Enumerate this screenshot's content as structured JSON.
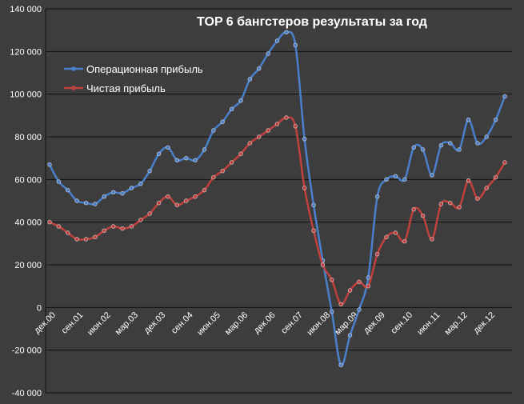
{
  "chart_data": {
    "type": "line",
    "title": "TOP 6 бангстеров результаты за год",
    "xlabel": "",
    "ylabel": "",
    "ylim": [
      -40000,
      140000
    ],
    "y_ticks": [
      "-40 000",
      "-20 000",
      "0",
      "20 000",
      "40 000",
      "60 000",
      "80 000",
      "100 000",
      "120 000",
      "140 000"
    ],
    "x_tick_labels": [
      "дек.00",
      "сен.01",
      "июн.02",
      "мар.03",
      "дек.03",
      "сен.04",
      "июн.05",
      "мар.06",
      "дек.06",
      "сен.07",
      "июн.08",
      "мар.09",
      "дек.09",
      "сен.10",
      "июн.11",
      "мар.12",
      "дек.12"
    ],
    "grid": true,
    "legend_position": "top-left",
    "series": [
      {
        "name": "Операционная прибыль",
        "color": "#4a7fcb",
        "values": [
          67000,
          59000,
          55000,
          50000,
          49000,
          48500,
          52000,
          54000,
          53500,
          56000,
          58000,
          64000,
          72000,
          75000,
          69000,
          70000,
          69000,
          74000,
          83000,
          87000,
          93000,
          97000,
          107000,
          112000,
          119000,
          125000,
          129000,
          123000,
          79000,
          48000,
          22000,
          -2000,
          -27000,
          -13000,
          -1000,
          14000,
          52000,
          60000,
          61500,
          60000,
          75000,
          74000,
          62000,
          76000,
          77000,
          74000,
          88000,
          77000,
          80000,
          88000,
          99000
        ]
      },
      {
        "name": "Чистая прибыль",
        "color": "#c0413d",
        "values": [
          40000,
          38000,
          35000,
          32000,
          32000,
          33000,
          36000,
          38000,
          37000,
          38000,
          41000,
          44000,
          49000,
          52000,
          48000,
          50000,
          52000,
          55000,
          61000,
          64000,
          68000,
          72000,
          77000,
          80000,
          83000,
          86000,
          89000,
          85000,
          56000,
          36000,
          20000,
          13000,
          1500,
          8000,
          12000,
          10000,
          25000,
          33000,
          35000,
          31000,
          46000,
          43000,
          32000,
          48500,
          49000,
          47000,
          59500,
          51000,
          56000,
          61000,
          68000
        ]
      }
    ]
  },
  "colors": {
    "background": "#3d3d3d",
    "grid": "#111111",
    "text": "#ffffff"
  }
}
